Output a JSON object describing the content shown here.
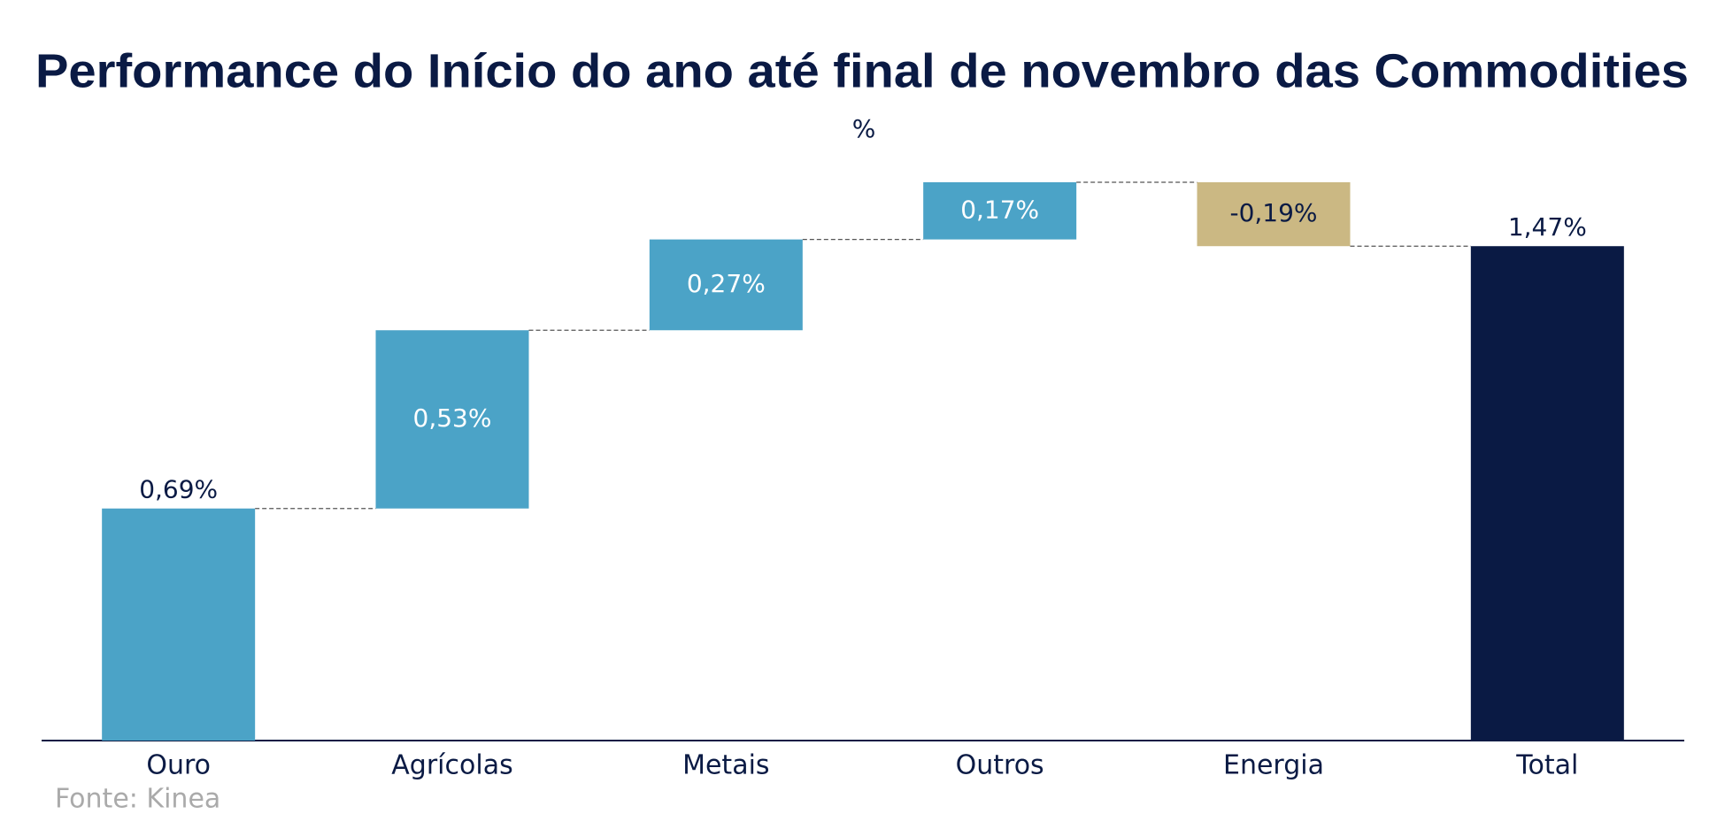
{
  "chart_data": {
    "type": "waterfall",
    "title": "Performance do Início do ano até final de novembro das Commodities",
    "subtitle": "%",
    "source": "Fonte: Kinea",
    "categories": [
      "Ouro",
      "Agrícolas",
      "Metais",
      "Outros",
      "Energia",
      "Total"
    ],
    "values": [
      0.69,
      0.53,
      0.27,
      0.17,
      -0.19,
      1.47
    ],
    "value_labels": [
      "0,69%",
      "0,53%",
      "0,27%",
      "0,17%",
      "-0,19%",
      "1,47%"
    ],
    "colors": {
      "increase": "#4ba3c7",
      "decrease": "#cbb883",
      "total": "#0a1a44"
    }
  }
}
